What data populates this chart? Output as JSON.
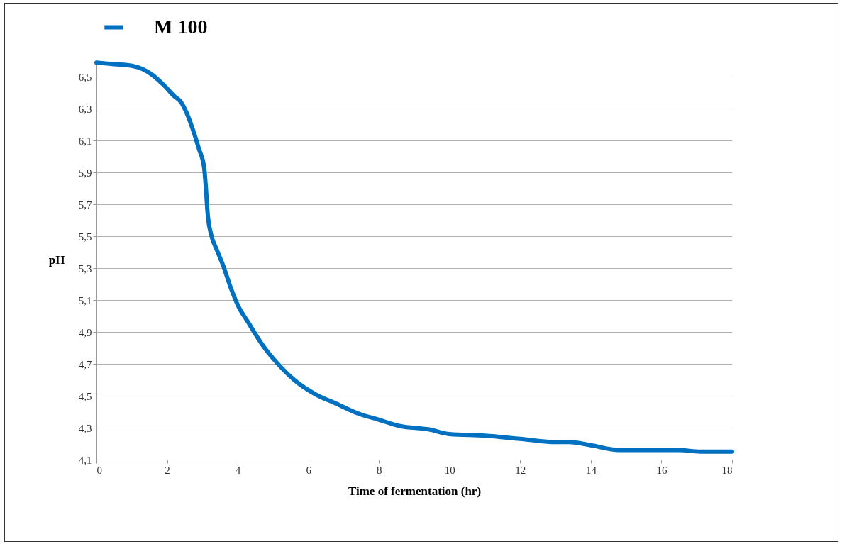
{
  "chart_data": {
    "type": "line",
    "xlabel": "Time of fermentation (hr)",
    "ylabel": "pH",
    "x": [
      0,
      0.5,
      1.0,
      1.3,
      1.6,
      1.9,
      2.2,
      2.4,
      2.5,
      2.7,
      2.9,
      3.05,
      3.1,
      3.15,
      3.25,
      3.4,
      3.6,
      3.8,
      4.0,
      4.3,
      4.7,
      5.1,
      5.6,
      6.2,
      6.8,
      7.4,
      8.0,
      8.6,
      9.4,
      10.0,
      11.0,
      12.0,
      13.0,
      13.4,
      14.0,
      14.8,
      15.8,
      16.5,
      17.1,
      18
    ],
    "series": [
      {
        "name": "M 100",
        "color": "#0070c0",
        "values": [
          6.59,
          6.58,
          6.57,
          6.55,
          6.51,
          6.45,
          6.38,
          6.34,
          6.3,
          6.19,
          6.05,
          5.93,
          5.8,
          5.64,
          5.51,
          5.42,
          5.31,
          5.18,
          5.07,
          4.96,
          4.82,
          4.71,
          4.6,
          4.51,
          4.45,
          4.39,
          4.35,
          4.31,
          4.29,
          4.26,
          4.25,
          4.23,
          4.21,
          4.21,
          4.19,
          4.16,
          4.16,
          4.16,
          4.15,
          4.15
        ]
      }
    ],
    "xlim": [
      0,
      18
    ],
    "xticks": [
      0,
      2,
      4,
      6,
      8,
      10,
      12,
      14,
      16,
      18
    ],
    "ylim": [
      4.1,
      6.6
    ],
    "yticks": [
      {
        "value": 4.1,
        "label": "4,1"
      },
      {
        "value": 4.3,
        "label": "4,3"
      },
      {
        "value": 4.5,
        "label": "4,5"
      },
      {
        "value": 4.7,
        "label": "4,7"
      },
      {
        "value": 4.9,
        "label": "4,9"
      },
      {
        "value": 5.1,
        "label": "5,1"
      },
      {
        "value": 5.3,
        "label": "5,3"
      },
      {
        "value": 5.5,
        "label": "5,5"
      },
      {
        "value": 5.7,
        "label": "5,7"
      },
      {
        "value": 5.9,
        "label": "5,9"
      },
      {
        "value": 6.1,
        "label": "6,1"
      },
      {
        "value": 6.3,
        "label": "6,3"
      },
      {
        "value": 6.5,
        "label": "6,5"
      }
    ],
    "grid": "y",
    "legend": "top",
    "marker": "none",
    "line_style": "solid"
  }
}
